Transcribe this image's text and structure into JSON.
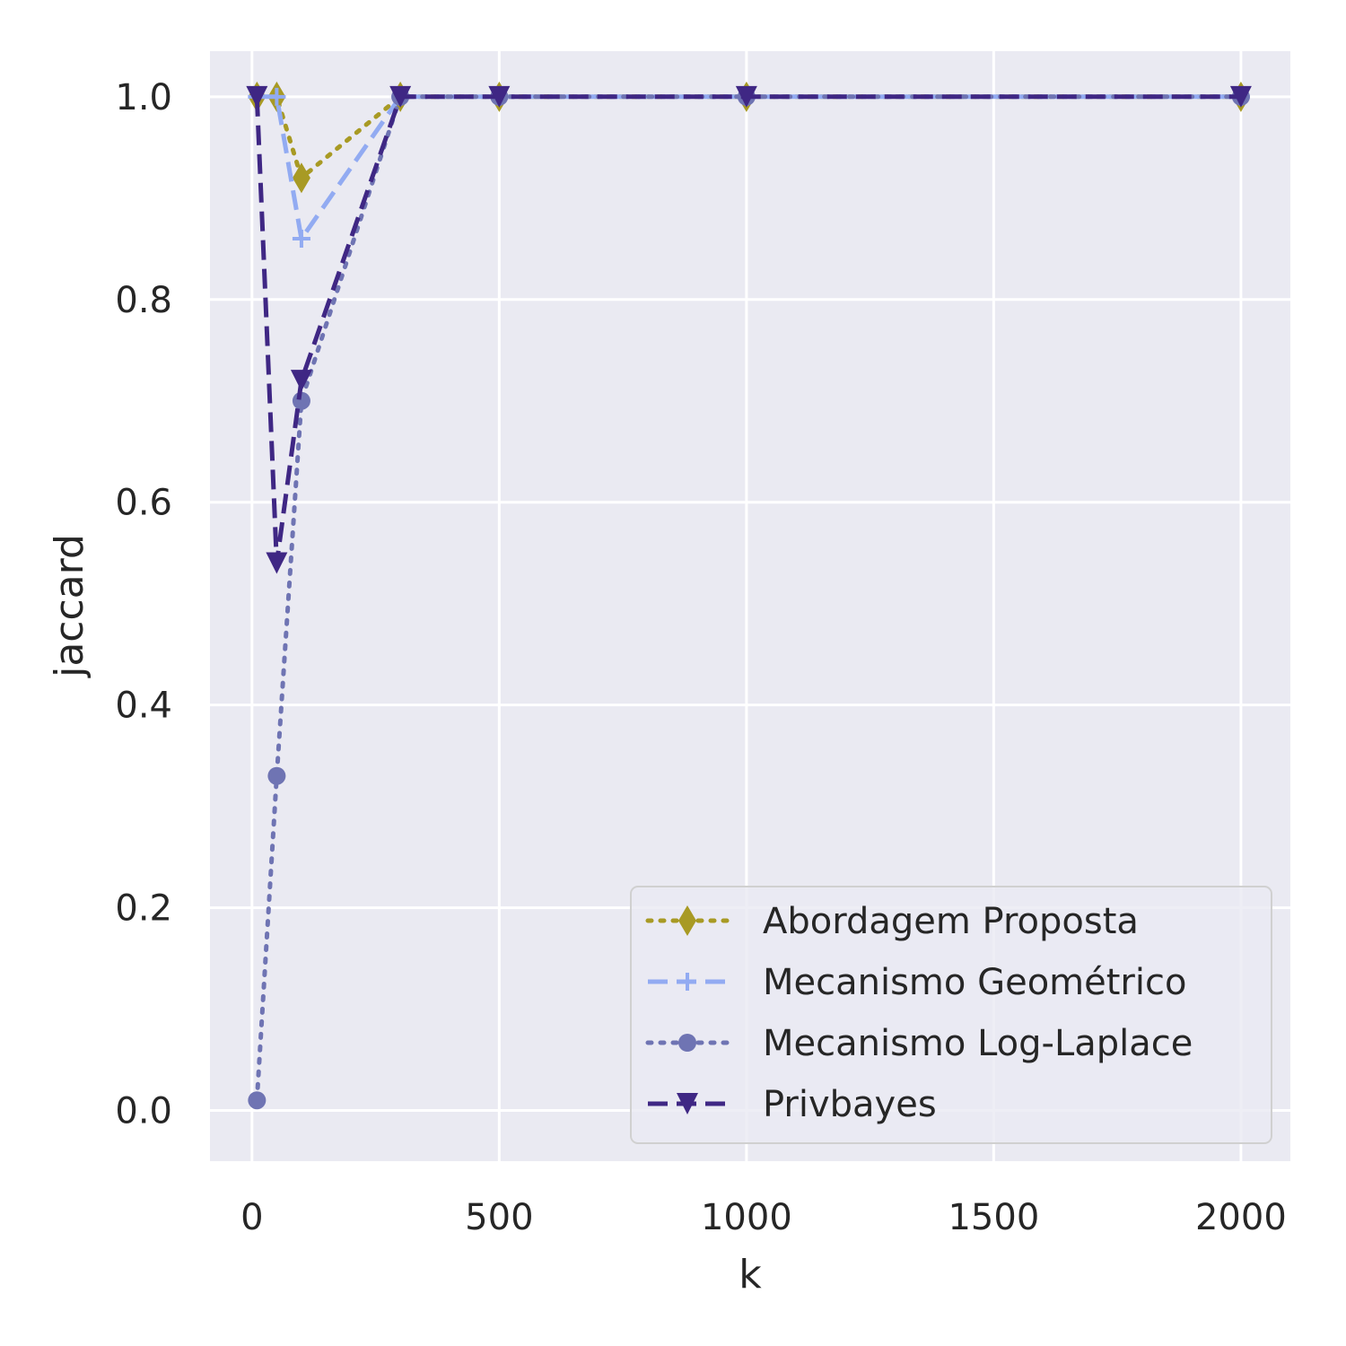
{
  "chart_data": {
    "type": "line",
    "title": "",
    "xlabel": "k",
    "ylabel": "jaccard",
    "xlim": [
      -85,
      2100
    ],
    "ylim": [
      -0.05,
      1.045
    ],
    "xticks": [
      0,
      500,
      1000,
      1500,
      2000
    ],
    "xtick_labels": [
      "0",
      "500",
      "1000",
      "1500",
      "2000"
    ],
    "yticks": [
      0.0,
      0.2,
      0.4,
      0.6,
      0.8,
      1.0
    ],
    "ytick_labels": [
      "0.0",
      "0.2",
      "0.4",
      "0.6",
      "0.8",
      "1.0"
    ],
    "grid": true,
    "legend_position": "lower-right",
    "x": [
      10,
      50,
      100,
      300,
      500,
      1000,
      2000
    ],
    "series": [
      {
        "name": "Abordagem Proposta",
        "values": [
          1.0,
          1.0,
          0.92,
          1.0,
          1.0,
          1.0,
          1.0
        ],
        "color": "#a89a24",
        "line_style": "dotted",
        "marker": "diamond"
      },
      {
        "name": "Mecanismo Geométrico",
        "values": [
          1.0,
          1.0,
          0.86,
          1.0,
          1.0,
          1.0,
          1.0
        ],
        "color": "#92abf2",
        "line_style": "dashed",
        "marker": "plus"
      },
      {
        "name": "Mecanismo Log-Laplace",
        "values": [
          0.01,
          0.33,
          0.7,
          1.0,
          1.0,
          1.0,
          1.0
        ],
        "color": "#6f74b3",
        "line_style": "dotted",
        "marker": "circle"
      },
      {
        "name": "Privbayes",
        "values": [
          1.0,
          0.54,
          0.72,
          1.0,
          1.0,
          1.0,
          1.0
        ],
        "color": "#3f2784",
        "line_style": "dashed",
        "marker": "triangle-down"
      }
    ]
  }
}
